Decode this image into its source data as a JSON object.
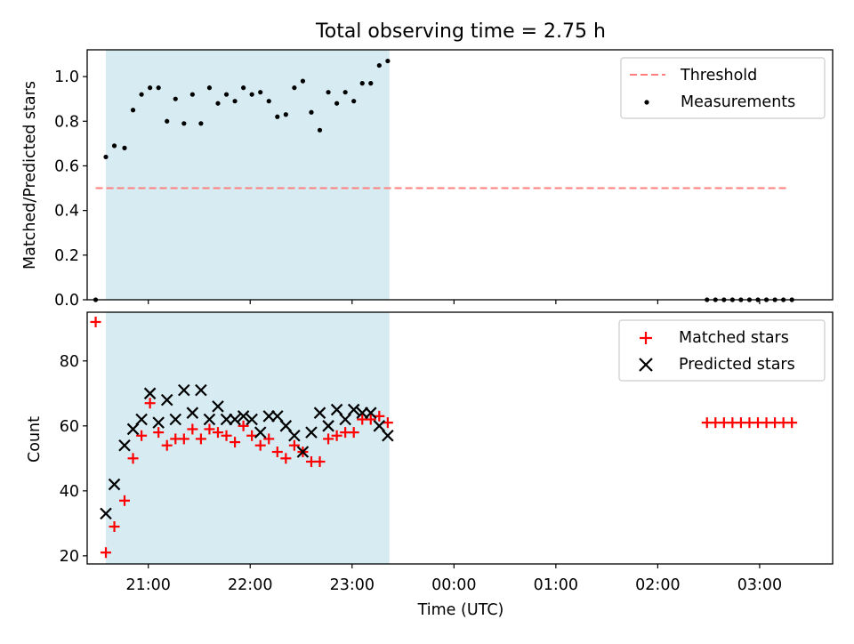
{
  "chart_data": [
    {
      "type": "scatter",
      "title": "Total observing time = 2.75 h",
      "xlabel": "",
      "ylabel": "Matched/Predicted stars",
      "ylim": [
        0,
        1.12
      ],
      "yticks": [
        "0.0",
        "0.2",
        "0.4",
        "0.6",
        "0.8",
        "1.0"
      ],
      "ytick_values": [
        0,
        0.2,
        0.4,
        0.6,
        0.8,
        1.0
      ],
      "xlim": [
        "20:24",
        "03:43"
      ],
      "shaded_interval": [
        "20:35",
        "23:22"
      ],
      "threshold": {
        "name": "Threshold",
        "value": 0.5,
        "x_range": [
          "20:29",
          "03:17"
        ],
        "color": "#ff7f7f"
      },
      "series": [
        {
          "name": "Measurements",
          "color": "#000000",
          "marker": "dot",
          "x": [
            "20:29",
            "20:35",
            "20:40",
            "20:46",
            "20:51",
            "20:56",
            "21:01",
            "21:06",
            "21:11",
            "21:16",
            "21:21",
            "21:26",
            "21:31",
            "21:36",
            "21:41",
            "21:46",
            "21:51",
            "21:56",
            "22:01",
            "22:06",
            "22:11",
            "22:16",
            "22:21",
            "22:26",
            "22:31",
            "22:36",
            "22:41",
            "22:46",
            "22:51",
            "22:56",
            "23:01",
            "23:06",
            "23:11",
            "23:16",
            "23:21",
            "02:29",
            "02:34",
            "02:39",
            "02:44",
            "02:49",
            "02:54",
            "02:59",
            "03:04",
            "03:09",
            "03:14",
            "03:19"
          ],
          "y": [
            0.0,
            0.64,
            0.69,
            0.68,
            0.85,
            0.92,
            0.95,
            0.95,
            0.8,
            0.9,
            0.79,
            0.92,
            0.79,
            0.95,
            0.88,
            0.92,
            0.89,
            0.95,
            0.92,
            0.93,
            0.89,
            0.82,
            0.83,
            0.95,
            0.98,
            0.84,
            0.76,
            0.93,
            0.88,
            0.93,
            0.89,
            0.97,
            0.97,
            1.05,
            1.07,
            0,
            0,
            0,
            0,
            0,
            0,
            0,
            0,
            0,
            0,
            0
          ]
        }
      ],
      "legend": [
        "Threshold",
        "Measurements"
      ],
      "legend_position": "top-right"
    },
    {
      "type": "scatter",
      "title": "",
      "xlabel": "Time (UTC)",
      "ylabel": "Count",
      "ylim": [
        17.5,
        95
      ],
      "yticks": [
        "20",
        "40",
        "60",
        "80"
      ],
      "ytick_values": [
        20,
        40,
        60,
        80
      ],
      "xticks": [
        "21:00",
        "22:00",
        "23:00",
        "00:00",
        "01:00",
        "02:00",
        "03:00"
      ],
      "xlim": [
        "20:24",
        "03:43"
      ],
      "shaded_interval": [
        "20:35",
        "23:22"
      ],
      "series": [
        {
          "name": "Matched stars",
          "color": "#ff0000",
          "marker": "plus",
          "x": [
            "20:29",
            "20:35",
            "20:40",
            "20:46",
            "20:51",
            "20:56",
            "21:01",
            "21:06",
            "21:11",
            "21:16",
            "21:21",
            "21:26",
            "21:31",
            "21:36",
            "21:41",
            "21:46",
            "21:51",
            "21:56",
            "22:01",
            "22:06",
            "22:11",
            "22:16",
            "22:21",
            "22:26",
            "22:31",
            "22:36",
            "22:41",
            "22:46",
            "22:51",
            "22:56",
            "23:01",
            "23:06",
            "23:11",
            "23:16",
            "23:21",
            "02:29",
            "02:34",
            "02:39",
            "02:44",
            "02:49",
            "02:54",
            "02:59",
            "03:04",
            "03:09",
            "03:14",
            "03:19"
          ],
          "y": [
            92,
            21,
            29,
            37,
            50,
            57,
            67,
            58,
            54,
            56,
            56,
            59,
            56,
            59,
            58,
            57,
            55,
            60,
            57,
            54,
            56,
            52,
            50,
            54,
            52,
            49,
            49,
            56,
            57,
            58,
            58,
            62,
            62,
            63,
            61,
            61,
            61,
            61,
            61,
            61,
            61,
            61,
            61,
            61,
            61,
            61
          ]
        },
        {
          "name": "Predicted stars",
          "color": "#000000",
          "marker": "x",
          "x": [
            "20:35",
            "20:40",
            "20:46",
            "20:51",
            "20:56",
            "21:01",
            "21:06",
            "21:11",
            "21:16",
            "21:21",
            "21:26",
            "21:31",
            "21:36",
            "21:41",
            "21:46",
            "21:51",
            "21:56",
            "22:01",
            "22:06",
            "22:11",
            "22:16",
            "22:21",
            "22:26",
            "22:31",
            "22:36",
            "22:41",
            "22:46",
            "22:51",
            "22:56",
            "23:01",
            "23:06",
            "23:11",
            "23:16",
            "23:21"
          ],
          "y": [
            33,
            42,
            54,
            59,
            62,
            70,
            61,
            68,
            62,
            71,
            64,
            71,
            62,
            66,
            62,
            62,
            63,
            62,
            58,
            63,
            63,
            60,
            57,
            52,
            58,
            64,
            60,
            65,
            62,
            65,
            64,
            64,
            60,
            57
          ]
        }
      ],
      "legend": [
        "Matched stars",
        "Predicted stars"
      ],
      "legend_position": "top-right"
    }
  ]
}
